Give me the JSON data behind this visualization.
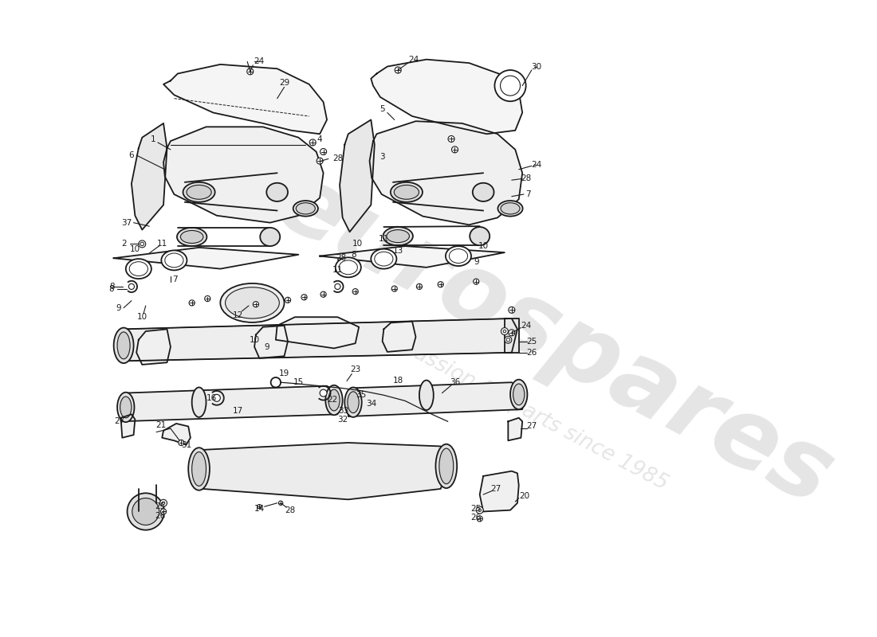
{
  "background_color": "#ffffff",
  "line_color": "#1a1a1a",
  "watermark1": "eurospares",
  "watermark2": "a passion for parts since 1985",
  "fig_width": 11.0,
  "fig_height": 8.0,
  "dpi": 100
}
